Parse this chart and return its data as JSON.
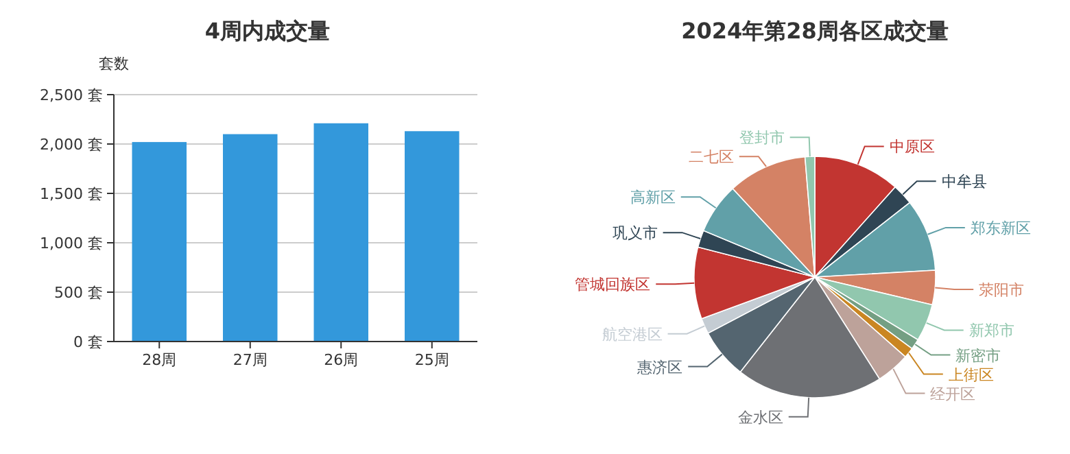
{
  "chart_data": [
    {
      "type": "bar",
      "title": "4周内成交量",
      "ylabel": "套数",
      "categories": [
        "28周",
        "27周",
        "26周",
        "25周"
      ],
      "values": [
        2020,
        2100,
        2210,
        2130
      ],
      "color": "#3398db",
      "ylim": [
        0,
        2500
      ],
      "yticks": [
        {
          "value": 0,
          "label": "0 套"
        },
        {
          "value": 500,
          "label": "500 套"
        },
        {
          "value": 1000,
          "label": "1,000 套"
        },
        {
          "value": 1500,
          "label": "1,500 套"
        },
        {
          "value": 2000,
          "label": "2,000 套"
        },
        {
          "value": 2500,
          "label": "2,500 套"
        }
      ],
      "grid": "y"
    },
    {
      "type": "pie",
      "title": "2024年第28周各区成交量",
      "categories": [
        "中原区",
        "中牟县",
        "郑东新区",
        "荥阳市",
        "新郑市",
        "新密市",
        "上街区",
        "经开区",
        "金水区",
        "惠济区",
        "航空港区",
        "管城回族区",
        "巩义市",
        "高新区",
        "二七区",
        "登封市"
      ],
      "values": [
        11.6,
        2.8,
        9.7,
        4.6,
        5.0,
        1.4,
        1.4,
        4.5,
        19.6,
        6.7,
        2.1,
        9.6,
        2.3,
        6.8,
        10.6,
        1.3
      ],
      "colors": [
        "#c23531",
        "#2f4554",
        "#61a0a8",
        "#d48265",
        "#91c7ae",
        "#749f83",
        "#ca8622",
        "#bda29a",
        "#6e7074",
        "#546570",
        "#c4ccd3",
        "#c23531",
        "#2f4554",
        "#61a0a8",
        "#d48265",
        "#91c7ae"
      ]
    }
  ]
}
